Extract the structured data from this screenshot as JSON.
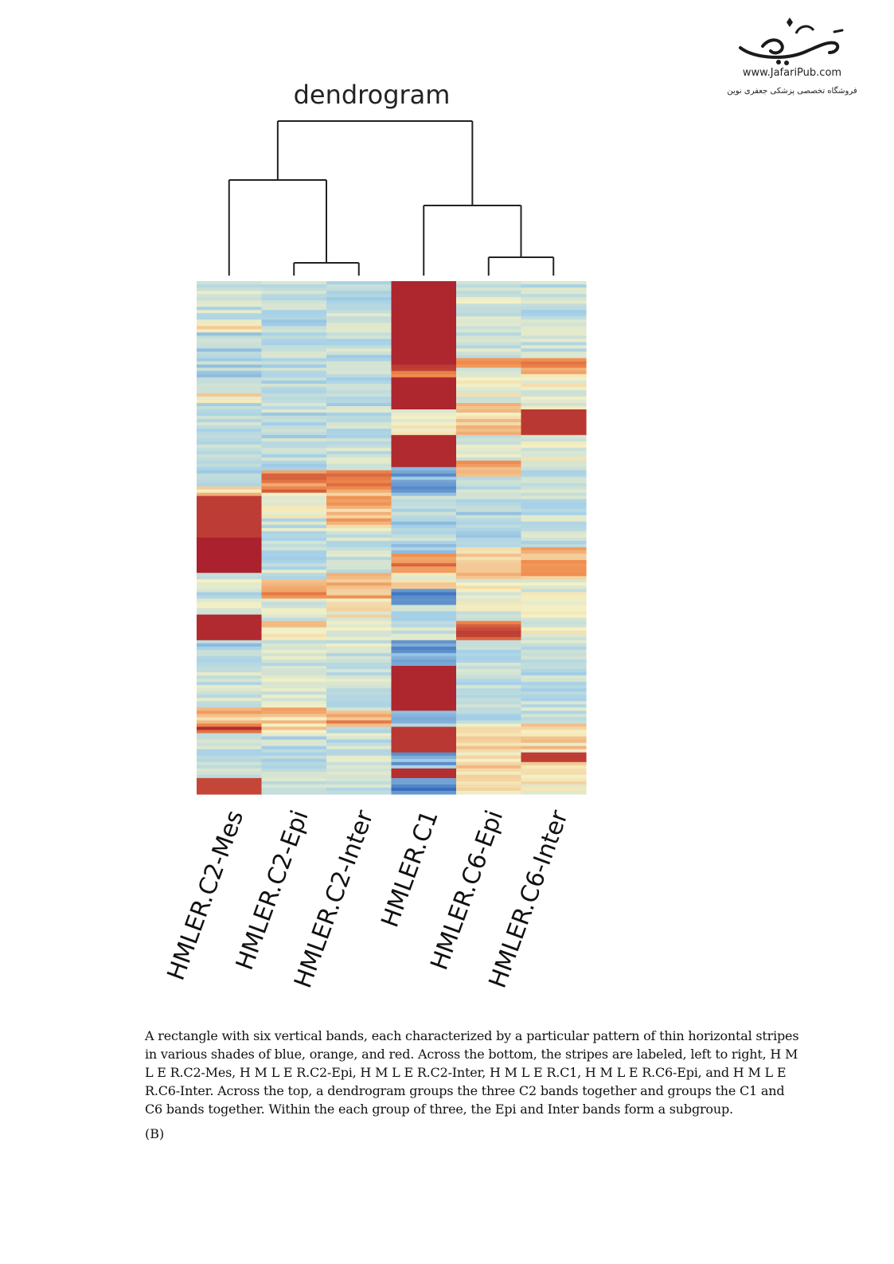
{
  "logo": {
    "url_text": "www.JafariPub.com",
    "tagline": "فروشگاه تخصصی پزشکی جعفری نوین"
  },
  "caption": "A rectangle with six vertical bands, each characterized by a particular pattern of thin horizontal stripes in various shades of blue, orange, and red. Across the bottom, the stripes are labeled, left to right, H M L E R.C2-Mes, H M L E R.C2-Epi, H M L E R.C2-Inter, H M L E R.C1, H M L E R.C6-Epi, and H M L E R.C6-Inter. Across the top, a dendrogram groups the three C2 bands together and groups the C1 and C6 bands together. Within the each group of three, the Epi and Inter bands form a subgroup.",
  "figure_label": "(B)",
  "chart_data": {
    "type": "heatmap",
    "title": "dendrogram",
    "columns": [
      "HMLER.C2-Mes",
      "HMLER.C2-Epi",
      "HMLER.C2-Inter",
      "HMLER.C1",
      "HMLER.C6-Epi",
      "HMLER.C6-Inter"
    ],
    "dendrogram": {
      "clusters": [
        {
          "members": [
            "HMLER.C2-Epi",
            "HMLER.C2-Inter"
          ]
        },
        {
          "members": [
            "HMLER.C6-Epi",
            "HMLER.C6-Inter"
          ]
        },
        {
          "members": [
            "HMLER.C2-Mes",
            "HMLER.C2-Epi",
            "HMLER.C2-Inter"
          ]
        },
        {
          "members": [
            "HMLER.C1",
            "HMLER.C6-Epi",
            "HMLER.C6-Inter"
          ]
        },
        {
          "members": [
            "HMLER.C2-Mes",
            "HMLER.C2-Epi",
            "HMLER.C2-Inter",
            "HMLER.C1",
            "HMLER.C6-Epi",
            "HMLER.C6-Inter"
          ]
        }
      ]
    },
    "color_scale": {
      "low": "#3a6fbd",
      "mid_low": "#a6d1e8",
      "mid": "#f5f1c4",
      "mid_high": "#f08a4b",
      "high": "#a5182a"
    },
    "row_count": 160,
    "profiles": {
      "HMLER.C2-Mes": [
        {
          "from": 0,
          "to": 0.08,
          "level": 0.35
        },
        {
          "from": 0.08,
          "to": 0.1,
          "level": 0.62
        },
        {
          "from": 0.1,
          "to": 0.22,
          "level": 0.3
        },
        {
          "from": 0.22,
          "to": 0.24,
          "level": 0.55
        },
        {
          "from": 0.24,
          "to": 0.4,
          "level": 0.32
        },
        {
          "from": 0.4,
          "to": 0.42,
          "level": 0.6
        },
        {
          "from": 0.42,
          "to": 0.5,
          "level": 0.92
        },
        {
          "from": 0.5,
          "to": 0.57,
          "level": 0.98
        },
        {
          "from": 0.57,
          "to": 0.6,
          "level": 0.42
        },
        {
          "from": 0.6,
          "to": 0.62,
          "level": 0.3
        },
        {
          "from": 0.62,
          "to": 0.65,
          "level": 0.45
        },
        {
          "from": 0.65,
          "to": 0.7,
          "level": 0.96
        },
        {
          "from": 0.7,
          "to": 0.75,
          "level": 0.3
        },
        {
          "from": 0.75,
          "to": 0.83,
          "level": 0.38
        },
        {
          "from": 0.83,
          "to": 0.86,
          "level": 0.65
        },
        {
          "from": 0.86,
          "to": 0.88,
          "level": 0.85
        },
        {
          "from": 0.88,
          "to": 0.97,
          "level": 0.32
        },
        {
          "from": 0.97,
          "to": 1.0,
          "level": 0.9
        }
      ],
      "HMLER.C2-Epi": [
        {
          "from": 0,
          "to": 0.37,
          "level": 0.32
        },
        {
          "from": 0.37,
          "to": 0.41,
          "level": 0.78
        },
        {
          "from": 0.41,
          "to": 0.46,
          "level": 0.5
        },
        {
          "from": 0.46,
          "to": 0.58,
          "level": 0.35
        },
        {
          "from": 0.58,
          "to": 0.62,
          "level": 0.68
        },
        {
          "from": 0.62,
          "to": 0.66,
          "level": 0.42
        },
        {
          "from": 0.66,
          "to": 0.7,
          "level": 0.58
        },
        {
          "from": 0.7,
          "to": 0.83,
          "level": 0.38
        },
        {
          "from": 0.83,
          "to": 0.88,
          "level": 0.6
        },
        {
          "from": 0.88,
          "to": 1.0,
          "level": 0.34
        }
      ],
      "HMLER.C2-Inter": [
        {
          "from": 0,
          "to": 0.37,
          "level": 0.34
        },
        {
          "from": 0.37,
          "to": 0.41,
          "level": 0.75
        },
        {
          "from": 0.41,
          "to": 0.48,
          "level": 0.62
        },
        {
          "from": 0.48,
          "to": 0.57,
          "level": 0.38
        },
        {
          "from": 0.57,
          "to": 0.62,
          "level": 0.66
        },
        {
          "from": 0.62,
          "to": 0.7,
          "level": 0.48
        },
        {
          "from": 0.7,
          "to": 0.84,
          "level": 0.38
        },
        {
          "from": 0.84,
          "to": 0.87,
          "level": 0.7
        },
        {
          "from": 0.87,
          "to": 1.0,
          "level": 0.36
        }
      ],
      "HMLER.C1": [
        {
          "from": 0,
          "to": 0.16,
          "level": 0.97
        },
        {
          "from": 0.16,
          "to": 0.19,
          "level": 0.82
        },
        {
          "from": 0.19,
          "to": 0.25,
          "level": 0.97
        },
        {
          "from": 0.25,
          "to": 0.3,
          "level": 0.45
        },
        {
          "from": 0.3,
          "to": 0.36,
          "level": 0.96
        },
        {
          "from": 0.36,
          "to": 0.42,
          "level": 0.15
        },
        {
          "from": 0.42,
          "to": 0.53,
          "level": 0.3
        },
        {
          "from": 0.53,
          "to": 0.57,
          "level": 0.78
        },
        {
          "from": 0.57,
          "to": 0.6,
          "level": 0.5
        },
        {
          "from": 0.6,
          "to": 0.63,
          "level": 0.05
        },
        {
          "from": 0.63,
          "to": 0.7,
          "level": 0.35
        },
        {
          "from": 0.7,
          "to": 0.75,
          "level": 0.12
        },
        {
          "from": 0.75,
          "to": 0.84,
          "level": 0.97
        },
        {
          "from": 0.84,
          "to": 0.87,
          "level": 0.2
        },
        {
          "from": 0.87,
          "to": 0.92,
          "level": 0.93
        },
        {
          "from": 0.92,
          "to": 0.95,
          "level": 0.18
        },
        {
          "from": 0.95,
          "to": 0.97,
          "level": 0.95
        },
        {
          "from": 0.97,
          "to": 1.0,
          "level": 0.08
        }
      ],
      "HMLER.C6-Epi": [
        {
          "from": 0,
          "to": 0.15,
          "level": 0.4
        },
        {
          "from": 0.15,
          "to": 0.17,
          "level": 0.75
        },
        {
          "from": 0.17,
          "to": 0.24,
          "level": 0.45
        },
        {
          "from": 0.24,
          "to": 0.3,
          "level": 0.6
        },
        {
          "from": 0.3,
          "to": 0.35,
          "level": 0.38
        },
        {
          "from": 0.35,
          "to": 0.38,
          "level": 0.72
        },
        {
          "from": 0.38,
          "to": 0.52,
          "level": 0.32
        },
        {
          "from": 0.52,
          "to": 0.58,
          "level": 0.62
        },
        {
          "from": 0.58,
          "to": 0.66,
          "level": 0.45
        },
        {
          "from": 0.66,
          "to": 0.7,
          "level": 0.85
        },
        {
          "from": 0.7,
          "to": 0.86,
          "level": 0.35
        },
        {
          "from": 0.86,
          "to": 1.0,
          "level": 0.55
        }
      ],
      "HMLER.C6-Inter": [
        {
          "from": 0,
          "to": 0.15,
          "level": 0.35
        },
        {
          "from": 0.15,
          "to": 0.18,
          "level": 0.72
        },
        {
          "from": 0.18,
          "to": 0.25,
          "level": 0.45
        },
        {
          "from": 0.25,
          "to": 0.3,
          "level": 0.93
        },
        {
          "from": 0.3,
          "to": 0.37,
          "level": 0.45
        },
        {
          "from": 0.37,
          "to": 0.52,
          "level": 0.35
        },
        {
          "from": 0.52,
          "to": 0.58,
          "level": 0.65
        },
        {
          "from": 0.58,
          "to": 0.7,
          "level": 0.45
        },
        {
          "from": 0.7,
          "to": 0.86,
          "level": 0.35
        },
        {
          "from": 0.86,
          "to": 0.92,
          "level": 0.55
        },
        {
          "from": 0.92,
          "to": 0.94,
          "level": 0.92
        },
        {
          "from": 0.94,
          "to": 1.0,
          "level": 0.5
        }
      ]
    }
  }
}
